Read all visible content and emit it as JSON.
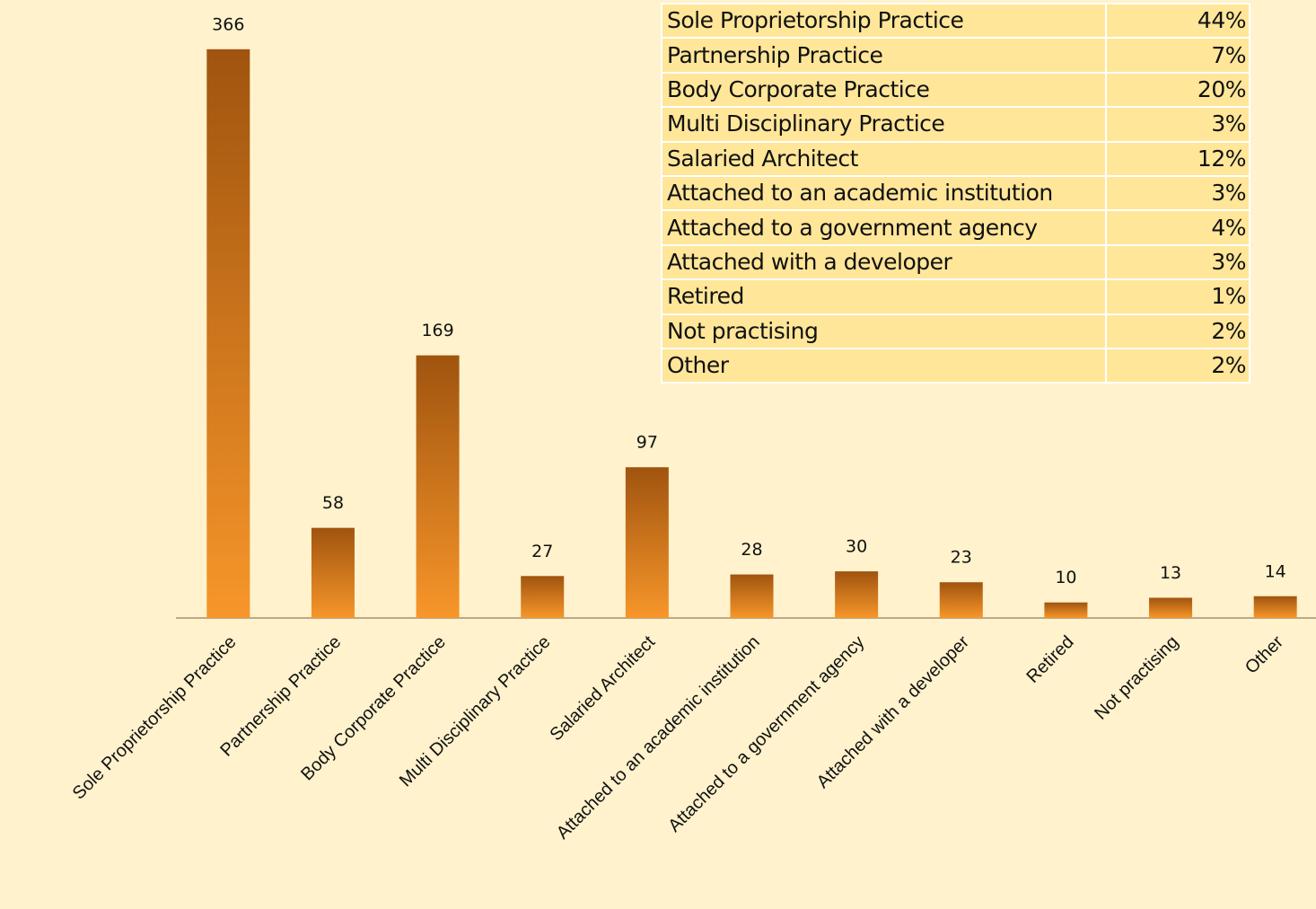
{
  "chart_data": {
    "type": "bar",
    "categories": [
      "Sole Proprietorship Practice",
      "Partnership Practice",
      "Body Corporate Practice",
      "Multi Disciplinary Practice",
      "Salaried Architect",
      "Attached to an academic institution",
      "Attached to a government agency",
      "Attached with a developer",
      "Retired",
      "Not practising",
      "Other"
    ],
    "values": [
      366,
      58,
      169,
      27,
      97,
      28,
      30,
      23,
      10,
      13,
      14
    ],
    "color": [
      "#a0540f",
      "#f7962a"
    ],
    "ylim": [
      0,
      400
    ]
  },
  "table": {
    "rows": [
      [
        "Sole Proprietorship Practice",
        "44%"
      ],
      [
        "Partnership Practice",
        "7%"
      ],
      [
        "Body Corporate Practice",
        "20%"
      ],
      [
        "Multi Disciplinary Practice",
        "3%"
      ],
      [
        "Salaried Architect",
        "12%"
      ],
      [
        "Attached to an academic institution",
        "3%"
      ],
      [
        "Attached to a government agency",
        "4%"
      ],
      [
        "Attached with a developer",
        "3%"
      ],
      [
        "Retired",
        "1%"
      ],
      [
        "Not practising",
        "2%"
      ],
      [
        "Other",
        "2%"
      ]
    ]
  }
}
